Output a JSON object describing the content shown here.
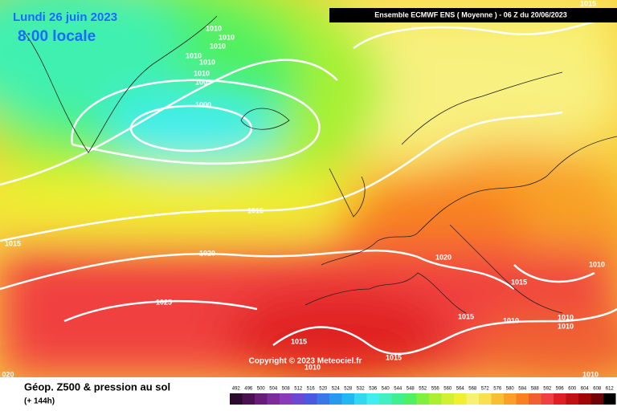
{
  "header": {
    "date": "Lundi 26 juin 2023",
    "time": "8:00 locale",
    "model": "Ensemble ECMWF ENS  ( Moyenne )  -  06 Z du 20/06/2023"
  },
  "copyright": "Copyright © 2023 Meteociel.fr",
  "legend": {
    "title": "Géop. Z500 & pression au sol",
    "range": "(+ 144h)"
  },
  "isobar_labels": [
    "1010",
    "1010",
    "1010",
    "1010",
    "1010",
    "1010",
    "1005",
    "1000",
    "1015",
    "1020",
    "1015",
    "1025",
    "1020",
    "1015",
    "1010",
    "1015",
    "1010",
    "1010",
    "1010",
    "1015",
    "1015",
    "1010",
    "1010",
    "020",
    "1015"
  ],
  "colorbar": [
    {
      "value": 492,
      "color": "#2a0a2e"
    },
    {
      "value": 496,
      "color": "#4a1050"
    },
    {
      "value": 500,
      "color": "#6a1a78"
    },
    {
      "value": 504,
      "color": "#7e2a9a"
    },
    {
      "value": 508,
      "color": "#8a3cb8"
    },
    {
      "value": 512,
      "color": "#6a4ad0"
    },
    {
      "value": 516,
      "color": "#4a5ae0"
    },
    {
      "value": 520,
      "color": "#3a78e8"
    },
    {
      "value": 524,
      "color": "#2a98ee"
    },
    {
      "value": 528,
      "color": "#20b8f0"
    },
    {
      "value": 532,
      "color": "#30d8f0"
    },
    {
      "value": 536,
      "color": "#40eef0"
    },
    {
      "value": 540,
      "color": "#40f0c0"
    },
    {
      "value": 544,
      "color": "#40f090"
    },
    {
      "value": 548,
      "color": "#50f060"
    },
    {
      "value": 552,
      "color": "#80f040"
    },
    {
      "value": 556,
      "color": "#a8f030"
    },
    {
      "value": 560,
      "color": "#d0f030"
    },
    {
      "value": 564,
      "color": "#f0f030"
    },
    {
      "value": 568,
      "color": "#f8f070"
    },
    {
      "value": 572,
      "color": "#f8e050"
    },
    {
      "value": 576,
      "color": "#f8c030"
    },
    {
      "value": 580,
      "color": "#f8a028"
    },
    {
      "value": 584,
      "color": "#f88020"
    },
    {
      "value": 588,
      "color": "#f06030"
    },
    {
      "value": 592,
      "color": "#f04040"
    },
    {
      "value": 596,
      "color": "#e02020"
    },
    {
      "value": 600,
      "color": "#c01010"
    },
    {
      "value": 604,
      "color": "#a00808"
    },
    {
      "value": 608,
      "color": "#700404"
    },
    {
      "value": 612,
      "color": "#000000"
    }
  ]
}
